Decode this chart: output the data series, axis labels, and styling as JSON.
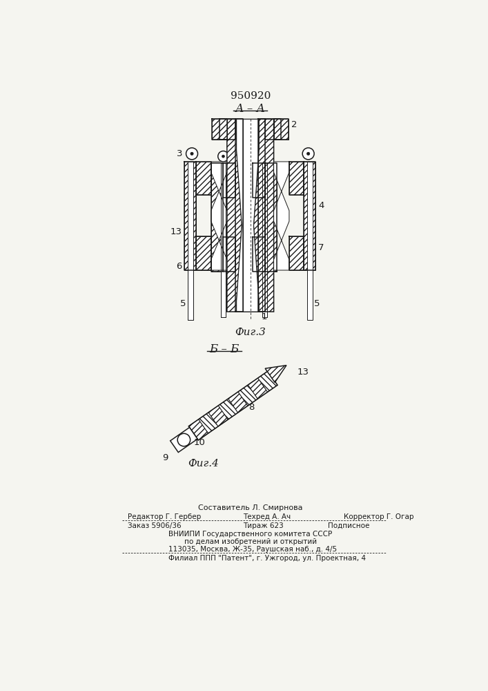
{
  "patent_number": "950920",
  "fig3_label": "А – А",
  "fig3_caption": "Фиг.3",
  "fig4_label": "Б – Б",
  "fig4_caption": "Фиг.4",
  "bg_color": "#f5f5f0",
  "line_color": "#1a1a1a",
  "footer": {
    "line1": "Составитель Л. Смирнова",
    "line2_left": "Редактор Г. Гербер",
    "line2_mid": "Техред А. Ач",
    "line2_right": "Корректор Г. Огар",
    "line3_left": "Заказ 5906/36",
    "line3_mid": "Тираж 623",
    "line3_right": "Подписное",
    "line4": "ВНИИПИ Государственного комитета СССР",
    "line5": "по делам изобретений и открытий",
    "line6": "113035, Москва, Ж-35, Раушская наб., д. 4/5",
    "line7": "Филиал ППП \"Патент\", г. Ужгород, ул. Проектная, 4"
  }
}
